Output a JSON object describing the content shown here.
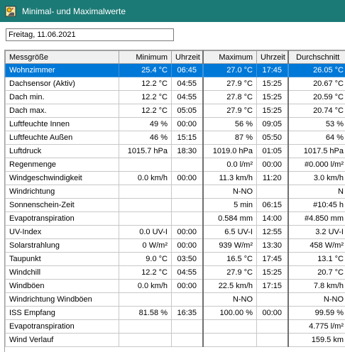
{
  "window": {
    "title": "Minimal- und Maximalwerte",
    "icon": "weather-app-icon"
  },
  "date_field": {
    "value": "Freitag, 11.06.2021"
  },
  "table": {
    "columns": [
      "Messgröße",
      "Minimum",
      "Uhrzeit",
      "Maximum",
      "Uhrzeit",
      "Durchschnitt"
    ],
    "rows": [
      [
        "Wohnzimmer",
        "25.4 °C",
        "06:45",
        "27.0 °C",
        "17:45",
        "26.05 °C"
      ],
      [
        "Dachsensor (Aktiv)",
        "12.2 °C",
        "04:55",
        "27.9 °C",
        "15:25",
        "20.67 °C"
      ],
      [
        "Dach min.",
        "12.2 °C",
        "04:55",
        "27.8 °C",
        "15:25",
        "20.59 °C"
      ],
      [
        "Dach max.",
        "12.2 °C",
        "05:05",
        "27.9 °C",
        "15:25",
        "20.74 °C"
      ],
      [
        "Luftfeuchte Innen",
        "49 %",
        "00:00",
        "56 %",
        "09:05",
        "53 %"
      ],
      [
        "Luftfeuchte Außen",
        "46 %",
        "15:15",
        "87 %",
        "05:50",
        "64 %"
      ],
      [
        "Luftdruck",
        "1015.7 hPa",
        "18:30",
        "1019.0 hPa",
        "01:05",
        "1017.5 hPa"
      ],
      [
        "Regenmenge",
        "",
        "",
        "0.0 l/m²",
        "00:00",
        "#0.000 l/m²"
      ],
      [
        "Windgeschwindigkeit",
        "0.0 km/h",
        "00:00",
        "11.3 km/h",
        "11:20",
        "3.0 km/h"
      ],
      [
        "Windrichtung",
        "",
        "",
        "N-NO",
        "",
        "N"
      ],
      [
        "Sonnenschein-Zeit",
        "",
        "",
        "5 min",
        "06:15",
        "#10:45 h"
      ],
      [
        "Evapotranspiration",
        "",
        "",
        "0.584 mm",
        "14:00",
        "#4.850 mm"
      ],
      [
        "UV-Index",
        "0.0 UV-I",
        "00:00",
        "6.5 UV-I",
        "12:55",
        "3.2 UV-I"
      ],
      [
        "Solarstrahlung",
        "0 W/m²",
        "00:00",
        "939 W/m²",
        "13:30",
        "458 W/m²"
      ],
      [
        "Taupunkt",
        "9.0 °C",
        "03:50",
        "16.5 °C",
        "17:45",
        "13.1 °C"
      ],
      [
        "Windchill",
        "12.2 °C",
        "04:55",
        "27.9 °C",
        "15:25",
        "20.7 °C"
      ],
      [
        "Windböen",
        "0.0 km/h",
        "00:00",
        "22.5 km/h",
        "17:15",
        "7.8 km/h"
      ],
      [
        "Windrichtung Windböen",
        "",
        "",
        "N-NO",
        "",
        "N-NO"
      ],
      [
        "ISS Empfang",
        "81.58 %",
        "16:35",
        "100.00 %",
        "00:00",
        "99.59 %"
      ],
      [
        "Evapotranspiration",
        "",
        "",
        "",
        "",
        "4.775 l/m²"
      ],
      [
        "Wind Verlauf",
        "",
        "",
        "",
        "",
        "159.5 km"
      ]
    ],
    "selected_row": 0
  },
  "colors": {
    "titlebar": "#1c7a76",
    "selection": "#0078d7"
  }
}
